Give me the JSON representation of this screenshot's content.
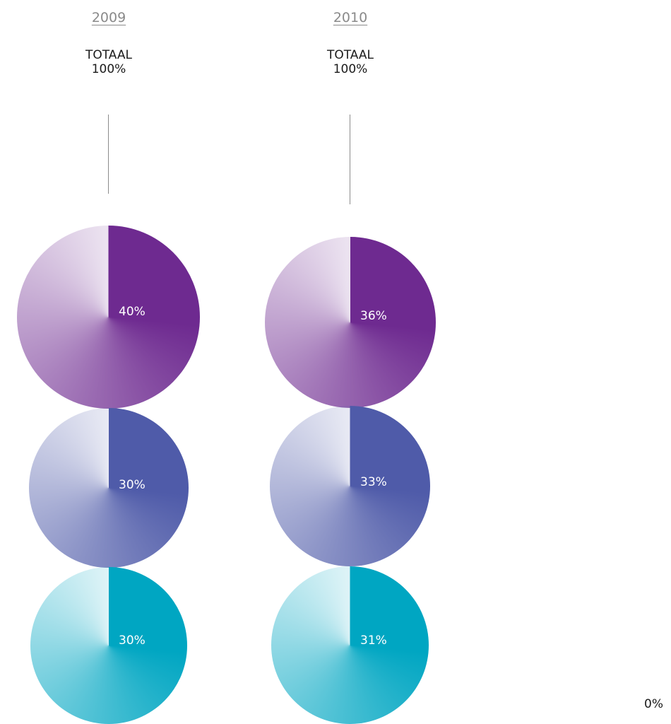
{
  "columns": [
    {
      "year": "2009",
      "total_label": "TOTAAL",
      "total_value": "100%"
    },
    {
      "year": "2010",
      "total_label": "TOTAAL",
      "total_value": "100%"
    }
  ],
  "corner_label": "0%",
  "colors": {
    "purple": "#6e2a90",
    "blue": "#4f5ba9",
    "teal": "#00a6c2"
  },
  "chart_data": {
    "type": "pie",
    "categories": [
      "2009",
      "2010"
    ],
    "series": [
      {
        "values": [
          40,
          36
        ],
        "labels": [
          "40%",
          "36%"
        ],
        "color": "#6e2a90"
      },
      {
        "values": [
          30,
          33
        ],
        "labels": [
          "30%",
          "33%"
        ],
        "color": "#4f5ba9"
      },
      {
        "values": [
          30,
          31
        ],
        "labels": [
          "30%",
          "31%"
        ],
        "color": "#00a6c2"
      }
    ]
  }
}
